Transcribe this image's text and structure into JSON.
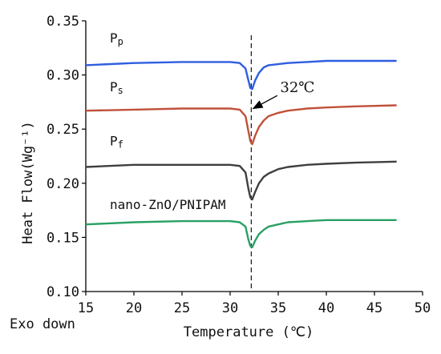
{
  "chart_data": {
    "type": "line",
    "xlabel": "Temperature (℃)",
    "ylabel": "Heat Flow(Wg⁻¹)",
    "corner_label": "Exo down",
    "xlim": [
      15,
      50
    ],
    "ylim": [
      0.1,
      0.35
    ],
    "x_ticks": [
      15,
      20,
      25,
      30,
      35,
      40,
      45,
      50
    ],
    "x_tick_labels": [
      "15",
      "20",
      "25",
      "30",
      "35",
      "40",
      "45",
      "50"
    ],
    "y_ticks": [
      0.1,
      0.15,
      0.2,
      0.25,
      0.3,
      0.35
    ],
    "y_tick_labels": [
      "0.10",
      "0.15",
      "0.20",
      "0.25",
      "0.30",
      "0.35"
    ],
    "reference_line": {
      "x": 32.2,
      "style": "dashed",
      "label": "32℃"
    },
    "series": [
      {
        "name": "Pp",
        "label_main": "P",
        "label_sub": "p",
        "color": "#2e5ee0",
        "x": [
          15.0,
          20.0,
          25.0,
          28.0,
          30.0,
          31.0,
          31.6,
          31.9,
          32.1,
          32.3,
          32.6,
          33.0,
          33.5,
          34.0,
          35.0,
          36.0,
          38.0,
          40.0,
          43.0,
          47.3
        ],
        "y": [
          0.309,
          0.311,
          0.312,
          0.312,
          0.312,
          0.311,
          0.306,
          0.295,
          0.288,
          0.287,
          0.295,
          0.302,
          0.307,
          0.309,
          0.31,
          0.311,
          0.312,
          0.313,
          0.313,
          0.313
        ]
      },
      {
        "name": "Ps",
        "label_main": "P",
        "label_sub": "s",
        "color": "#c0513a",
        "x": [
          15.0,
          20.0,
          25.0,
          28.0,
          30.0,
          31.0,
          31.6,
          31.9,
          32.1,
          32.3,
          32.6,
          33.0,
          33.5,
          34.0,
          35.0,
          36.0,
          38.0,
          40.0,
          43.0,
          47.3
        ],
        "y": [
          0.267,
          0.268,
          0.269,
          0.269,
          0.269,
          0.268,
          0.262,
          0.248,
          0.239,
          0.236,
          0.244,
          0.252,
          0.258,
          0.262,
          0.265,
          0.267,
          0.269,
          0.27,
          0.271,
          0.272
        ]
      },
      {
        "name": "Pf",
        "label_main": "P",
        "label_sub": "f",
        "color": "#3f3f3f",
        "x": [
          15.0,
          20.0,
          25.0,
          28.0,
          30.0,
          31.0,
          31.6,
          31.9,
          32.1,
          32.3,
          32.6,
          33.0,
          33.5,
          34.0,
          35.0,
          36.0,
          38.0,
          40.0,
          43.0,
          47.3
        ],
        "y": [
          0.215,
          0.217,
          0.217,
          0.217,
          0.217,
          0.216,
          0.21,
          0.195,
          0.187,
          0.185,
          0.192,
          0.2,
          0.206,
          0.209,
          0.213,
          0.215,
          0.217,
          0.218,
          0.219,
          0.22
        ]
      },
      {
        "name": "nano-ZnO/PNIPAM",
        "label_main": "nano-ZnO/PNIPAM",
        "label_sub": "",
        "color": "#2aa064",
        "x": [
          15.0,
          20.0,
          25.0,
          28.0,
          30.0,
          31.0,
          31.6,
          31.9,
          32.1,
          32.3,
          32.6,
          33.0,
          33.5,
          34.0,
          35.0,
          36.0,
          38.0,
          40.0,
          43.0,
          47.3
        ],
        "y": [
          0.162,
          0.164,
          0.165,
          0.165,
          0.165,
          0.164,
          0.16,
          0.148,
          0.142,
          0.141,
          0.147,
          0.153,
          0.157,
          0.16,
          0.162,
          0.164,
          0.165,
          0.166,
          0.166,
          0.166
        ]
      }
    ]
  }
}
